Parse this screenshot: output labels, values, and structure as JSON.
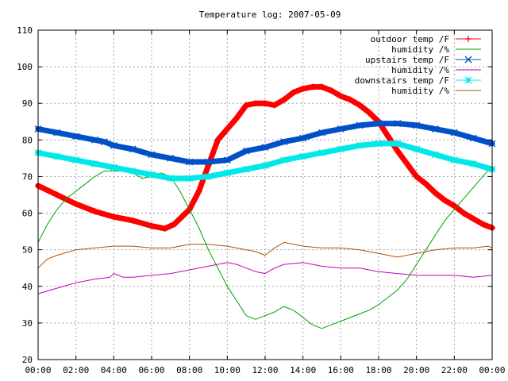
{
  "chart_data": {
    "type": "line",
    "title": "Temperature log: 2007-05-09",
    "xlabel": "",
    "ylabel": "",
    "xlim": [
      0,
      24
    ],
    "ylim": [
      20,
      110
    ],
    "x_ticks": [
      "00:00",
      "02:00",
      "04:00",
      "06:00",
      "08:00",
      "10:00",
      "12:00",
      "14:00",
      "16:00",
      "18:00",
      "20:00",
      "22:00",
      "00:00"
    ],
    "y_ticks": [
      "20",
      "30",
      "40",
      "50",
      "60",
      "70",
      "80",
      "90",
      "100",
      "110"
    ],
    "grid": true,
    "legend_position": "top-right",
    "series": [
      {
        "name": "outdoor temp /F",
        "color": "#ff0000",
        "marker": "plus",
        "x": [
          0,
          1,
          2,
          3,
          4,
          5,
          6,
          6.7,
          7.2,
          8,
          8.5,
          9,
          9.5,
          10,
          10.5,
          11,
          11.5,
          12,
          12.5,
          13,
          13.5,
          14,
          14.5,
          15,
          15.5,
          16,
          16.5,
          17,
          17.5,
          18,
          18.5,
          19,
          19.5,
          20,
          20.5,
          21,
          21.5,
          22,
          22.5,
          23,
          23.5,
          24
        ],
        "y": [
          67.5,
          65,
          62.5,
          60.5,
          59,
          58,
          56.5,
          55.8,
          57,
          61,
          66,
          73,
          80,
          83,
          86,
          89.5,
          90,
          90,
          89.5,
          91,
          93,
          94,
          94.5,
          94.5,
          93.5,
          92,
          91,
          89.5,
          87.5,
          85,
          81,
          77,
          73.5,
          70,
          68,
          65.5,
          63.5,
          62,
          60,
          58.5,
          57,
          56
        ]
      },
      {
        "name": "humidity /%",
        "color": "#00a000",
        "marker": "none",
        "x": [
          0,
          0.5,
          1,
          1.5,
          2,
          2.5,
          3,
          3.5,
          4,
          4.5,
          5,
          5.5,
          6,
          6.5,
          7,
          7.5,
          8,
          8.5,
          9,
          9.5,
          10,
          10.5,
          11,
          11.5,
          12,
          12.5,
          13,
          13.5,
          14,
          14.5,
          15,
          15.5,
          16,
          16.5,
          17,
          17.5,
          18,
          18.5,
          19,
          19.5,
          20,
          20.5,
          21,
          21.5,
          22,
          22.5,
          23,
          23.5,
          24
        ],
        "y": [
          52,
          57,
          61,
          64,
          66,
          68,
          70,
          71.5,
          71.5,
          71.5,
          71,
          69.5,
          70,
          71,
          70,
          66,
          61,
          56,
          50,
          45,
          40,
          36,
          32,
          31,
          32,
          33,
          34.5,
          33.5,
          31.5,
          29.5,
          28.5,
          29.5,
          30.5,
          31.5,
          32.5,
          33.5,
          35,
          37,
          39,
          42,
          46,
          50,
          54,
          58,
          61,
          64,
          67,
          70,
          73
        ]
      },
      {
        "name": "upstairs temp /F",
        "color": "#0050c8",
        "marker": "cross",
        "x": [
          0,
          1,
          2,
          3,
          3.5,
          4,
          5,
          6,
          7,
          8,
          9,
          10,
          11,
          12,
          13,
          14,
          15,
          16,
          17,
          18,
          19,
          20,
          21,
          22,
          23,
          24
        ],
        "y": [
          83,
          82,
          81,
          80,
          79.5,
          78.5,
          77.5,
          76,
          75,
          74,
          74,
          74.5,
          77,
          78,
          79.5,
          80.5,
          82,
          83,
          84,
          84.5,
          84.5,
          84,
          83,
          82,
          80.5,
          79
        ]
      },
      {
        "name": "humidity /%",
        "color": "#c000c0",
        "marker": "none",
        "x": [
          0,
          1,
          2,
          3,
          3.8,
          4,
          4.5,
          5,
          6,
          7,
          8,
          9,
          9.5,
          10,
          10.5,
          11,
          11.5,
          12,
          12.5,
          13,
          14,
          15,
          16,
          17,
          18,
          19,
          20,
          21,
          22,
          23,
          24
        ],
        "y": [
          38,
          39.5,
          41,
          42,
          42.5,
          43.5,
          42.5,
          42.5,
          43,
          43.5,
          44.5,
          45.5,
          46,
          46.5,
          46,
          45,
          44,
          43.5,
          45,
          46,
          46.5,
          45.5,
          45,
          45,
          44,
          43.5,
          43,
          43,
          43,
          42.5,
          43
        ]
      },
      {
        "name": "downstairs temp /F",
        "color": "#00e8e8",
        "marker": "star",
        "x": [
          0,
          1,
          2,
          3,
          4,
          5,
          6,
          7,
          8,
          9,
          10,
          11,
          12,
          13,
          14,
          15,
          16,
          17,
          18,
          19,
          20,
          21,
          22,
          23,
          24
        ],
        "y": [
          76.5,
          75.5,
          74.5,
          73.5,
          72.5,
          71.5,
          70.5,
          69.5,
          69.5,
          70,
          71,
          72,
          73,
          74.5,
          75.5,
          76.5,
          77.5,
          78.5,
          79,
          79,
          77.5,
          76,
          74.5,
          73.5,
          72
        ]
      },
      {
        "name": "humidity /%",
        "color": "#b05000",
        "marker": "none",
        "x": [
          0,
          0.5,
          1,
          2,
          3,
          4,
          5,
          6,
          7,
          8,
          9,
          10,
          11,
          11.5,
          12,
          12.5,
          13,
          14,
          15,
          16,
          17,
          18,
          18.5,
          19,
          20,
          21,
          22,
          23,
          23.8,
          24
        ],
        "y": [
          45,
          47.5,
          48.5,
          50,
          50.5,
          51,
          51,
          50.5,
          50.5,
          51.5,
          51.5,
          51,
          50,
          49.5,
          48.5,
          50.5,
          52,
          51,
          50.5,
          50.5,
          50,
          49,
          48.5,
          48,
          49,
          50,
          50.5,
          50.5,
          51,
          50.5
        ]
      }
    ]
  }
}
